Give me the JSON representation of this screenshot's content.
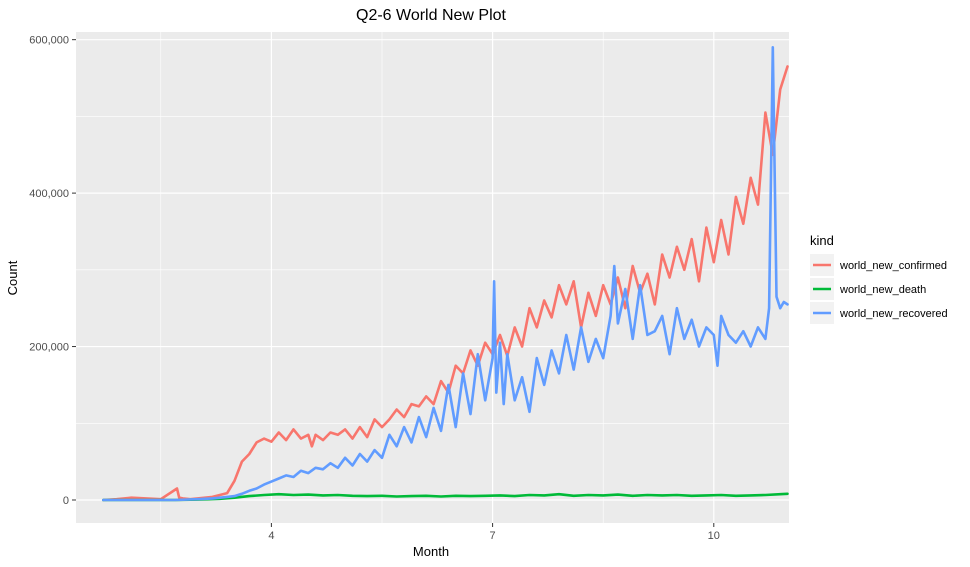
{
  "chart_data": {
    "type": "line",
    "title": "Q2-6 World New Plot",
    "xlabel": "Month",
    "ylabel": "Count",
    "xlim": [
      1.35,
      11.02
    ],
    "ylim": [
      -30000,
      610000
    ],
    "x_major_ticks": [
      4,
      7,
      10
    ],
    "x_minor_ticks": [
      2.5,
      5.5,
      8.5
    ],
    "x_tick_labels": [
      "4",
      "7",
      "10"
    ],
    "y_major_ticks": [
      0,
      200000,
      400000,
      600000
    ],
    "y_minor_ticks": [
      100000,
      300000,
      500000
    ],
    "y_tick_labels": [
      "0",
      "200,000",
      "400,000",
      "600,000"
    ],
    "grid": true,
    "legend": {
      "title": "kind",
      "placement": "right"
    },
    "series": [
      {
        "name": "world_new_confirmed",
        "color": "#F8766D",
        "x": [
          1.72,
          1.9,
          2.1,
          2.3,
          2.5,
          2.72,
          2.75,
          2.8,
          2.9,
          3.0,
          3.2,
          3.4,
          3.5,
          3.6,
          3.7,
          3.8,
          3.9,
          4.0,
          4.1,
          4.2,
          4.3,
          4.4,
          4.5,
          4.55,
          4.6,
          4.7,
          4.8,
          4.9,
          5.0,
          5.1,
          5.2,
          5.3,
          5.4,
          5.5,
          5.6,
          5.7,
          5.8,
          5.9,
          6.0,
          6.1,
          6.2,
          6.3,
          6.4,
          6.5,
          6.6,
          6.7,
          6.8,
          6.9,
          7.0,
          7.1,
          7.2,
          7.3,
          7.4,
          7.5,
          7.6,
          7.7,
          7.8,
          7.9,
          8.0,
          8.1,
          8.2,
          8.3,
          8.4,
          8.5,
          8.6,
          8.7,
          8.8,
          8.9,
          9.0,
          9.1,
          9.2,
          9.3,
          9.4,
          9.5,
          9.6,
          9.7,
          9.8,
          9.9,
          10.0,
          10.1,
          10.2,
          10.3,
          10.4,
          10.5,
          10.6,
          10.7,
          10.8,
          10.9,
          11.0
        ],
        "y": [
          0,
          1000,
          3000,
          2000,
          1000,
          15000,
          3000,
          2000,
          1000,
          2000,
          4000,
          9000,
          25000,
          50000,
          60000,
          75000,
          80000,
          76000,
          88000,
          78000,
          92000,
          80000,
          85000,
          70000,
          85000,
          78000,
          88000,
          85000,
          92000,
          80000,
          95000,
          82000,
          105000,
          95000,
          105000,
          118000,
          108000,
          125000,
          122000,
          135000,
          125000,
          155000,
          140000,
          175000,
          165000,
          195000,
          175000,
          205000,
          190000,
          215000,
          188000,
          225000,
          200000,
          250000,
          225000,
          260000,
          238000,
          280000,
          255000,
          285000,
          225000,
          270000,
          240000,
          280000,
          255000,
          290000,
          250000,
          305000,
          270000,
          295000,
          255000,
          320000,
          290000,
          330000,
          300000,
          340000,
          285000,
          355000,
          310000,
          365000,
          320000,
          395000,
          360000,
          420000,
          385000,
          505000,
          450000,
          535000,
          565000
        ]
      },
      {
        "name": "world_new_death",
        "color": "#00BA38",
        "x": [
          1.72,
          2.2,
          2.7,
          3.0,
          3.3,
          3.5,
          3.7,
          3.9,
          4.1,
          4.3,
          4.5,
          4.7,
          4.9,
          5.1,
          5.3,
          5.5,
          5.7,
          5.9,
          6.1,
          6.3,
          6.5,
          6.7,
          6.9,
          7.1,
          7.3,
          7.5,
          7.7,
          7.9,
          8.1,
          8.3,
          8.5,
          8.7,
          8.9,
          9.1,
          9.3,
          9.5,
          9.7,
          9.9,
          10.1,
          10.3,
          10.5,
          10.7,
          10.9,
          11.0
        ],
        "y": [
          0,
          0,
          0,
          500,
          1500,
          3000,
          5000,
          6500,
          7500,
          6500,
          7000,
          6000,
          6500,
          5500,
          5000,
          5500,
          4500,
          5000,
          5500,
          4500,
          5500,
          5000,
          5500,
          6000,
          5000,
          6500,
          6000,
          7500,
          5500,
          6500,
          6000,
          7000,
          5500,
          6500,
          6000,
          6500,
          5500,
          6000,
          6500,
          5500,
          6000,
          6500,
          7500,
          8000
        ]
      },
      {
        "name": "world_new_recovered",
        "color": "#619CFF",
        "x": [
          1.72,
          2.2,
          2.7,
          3.0,
          3.2,
          3.4,
          3.5,
          3.6,
          3.7,
          3.8,
          3.9,
          4.0,
          4.1,
          4.2,
          4.3,
          4.4,
          4.5,
          4.6,
          4.7,
          4.8,
          4.9,
          5.0,
          5.1,
          5.2,
          5.3,
          5.4,
          5.5,
          5.6,
          5.7,
          5.8,
          5.9,
          6.0,
          6.1,
          6.2,
          6.3,
          6.4,
          6.5,
          6.6,
          6.7,
          6.8,
          6.9,
          7.0,
          7.02,
          7.05,
          7.1,
          7.15,
          7.2,
          7.3,
          7.4,
          7.5,
          7.6,
          7.7,
          7.8,
          7.9,
          8.0,
          8.1,
          8.2,
          8.3,
          8.4,
          8.5,
          8.6,
          8.65,
          8.7,
          8.8,
          8.9,
          9.0,
          9.1,
          9.2,
          9.3,
          9.4,
          9.5,
          9.6,
          9.7,
          9.8,
          9.9,
          10.0,
          10.05,
          10.1,
          10.2,
          10.3,
          10.4,
          10.5,
          10.6,
          10.7,
          10.75,
          10.8,
          10.85,
          10.9,
          10.95,
          11.0
        ],
        "y": [
          0,
          0,
          0,
          1000,
          2000,
          4000,
          5000,
          8000,
          12000,
          15000,
          20000,
          24000,
          28000,
          32000,
          30000,
          38000,
          35000,
          42000,
          40000,
          48000,
          42000,
          55000,
          45000,
          60000,
          50000,
          65000,
          55000,
          85000,
          70000,
          95000,
          75000,
          108000,
          82000,
          120000,
          90000,
          150000,
          95000,
          165000,
          112000,
          190000,
          130000,
          185000,
          285000,
          140000,
          205000,
          125000,
          190000,
          130000,
          160000,
          115000,
          185000,
          150000,
          195000,
          165000,
          215000,
          170000,
          225000,
          180000,
          210000,
          185000,
          240000,
          305000,
          230000,
          275000,
          210000,
          280000,
          215000,
          220000,
          240000,
          190000,
          250000,
          210000,
          235000,
          200000,
          225000,
          215000,
          175000,
          240000,
          215000,
          205000,
          220000,
          200000,
          225000,
          210000,
          250000,
          590000,
          265000,
          250000,
          258000,
          255000
        ]
      }
    ]
  }
}
